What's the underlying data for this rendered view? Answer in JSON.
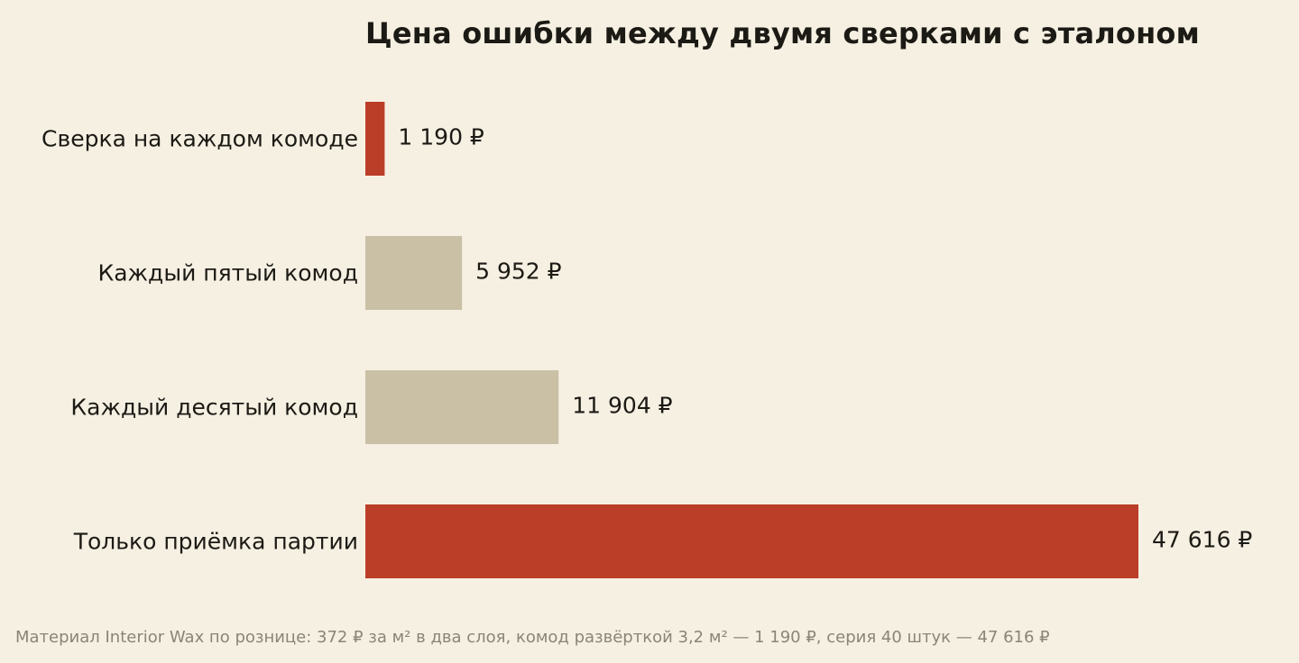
{
  "chart_data": {
    "type": "bar",
    "orientation": "horizontal",
    "title": "Цена ошибки между двумя сверками с эталоном",
    "categories": [
      "Сверка на каждом комоде",
      "Каждый пятый комод",
      "Каждый десятый комод",
      "Только приёмка партии"
    ],
    "values": [
      1190,
      5952,
      11904,
      47616
    ],
    "value_labels": [
      "1 190 ₽",
      "5 952 ₽",
      "11 904 ₽",
      "47 616 ₽"
    ],
    "bar_colors": [
      "#bb3e28",
      "#c9c0a6",
      "#c9c0a6",
      "#bb3e28"
    ],
    "grid": false,
    "axes_visible": false
  },
  "footnote": "Материал Interior Wax по рознице: 372 ₽ за м² в два слоя, комод развёрткой 3,2 м² — 1 190 ₽, серия 40 штук — 47 616 ₽",
  "colors": {
    "background": "#f6f0e3",
    "highlight": "#bb3e28",
    "muted": "#c9c0a6",
    "text": "#1c1a14",
    "footnote": "#8a8577"
  }
}
